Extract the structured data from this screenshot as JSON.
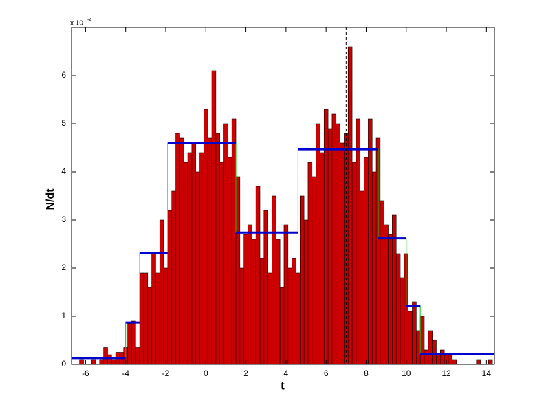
{
  "chart_data": {
    "type": "histogram",
    "xlabel": "t",
    "ylabel": "N/dt",
    "y_multiplier": "x 10",
    "y_multiplier_exponent": "-4",
    "bins": [
      -6.7,
      -6.5,
      -6.3,
      -6.1,
      -5.9,
      -5.7,
      -5.5,
      -5.3,
      -5.1,
      -4.9,
      -4.7,
      -4.5,
      -4.3,
      -4.1,
      -3.9,
      -3.7,
      -3.5,
      -3.3,
      -3.1,
      -2.9,
      -2.7,
      -2.5,
      -2.3,
      -2.1,
      -1.9,
      -1.7,
      -1.5,
      -1.3,
      -1.1,
      -0.9,
      -0.7,
      -0.5,
      -0.3,
      -0.1,
      0.1,
      0.3,
      0.5,
      0.7,
      0.9,
      1.1,
      1.3,
      1.5,
      1.7,
      1.9,
      2.1,
      2.3,
      2.5,
      2.7,
      2.9,
      3.1,
      3.3,
      3.5,
      3.7,
      3.9,
      4.1,
      4.3,
      4.5,
      4.7,
      4.9,
      5.1,
      5.3,
      5.5,
      5.7,
      5.9,
      6.1,
      6.3,
      6.5,
      6.7,
      6.9,
      7.1,
      7.3,
      7.5,
      7.7,
      7.9,
      8.1,
      8.3,
      8.5,
      8.7,
      8.9,
      9.1,
      9.3,
      9.5,
      9.7,
      9.9,
      10.1,
      10.3,
      10.5,
      10.7,
      10.9,
      11.1,
      11.3,
      11.5,
      11.7,
      11.9,
      12.1,
      12.3,
      12.5,
      12.7,
      12.9,
      13.1,
      13.3,
      13.5,
      13.7,
      13.9,
      14.1,
      14.3
    ],
    "counts": [
      0,
      0,
      0.1,
      0,
      0,
      0.1,
      0,
      0.1,
      0.35,
      0.2,
      0.1,
      0.25,
      0.25,
      0.35,
      0.85,
      0.9,
      0.35,
      1.9,
      1.9,
      1.6,
      2.3,
      1.9,
      3.0,
      2.0,
      3.2,
      3.6,
      4.8,
      4.7,
      4.2,
      4.4,
      4.6,
      4.0,
      4.4,
      5.3,
      4.7,
      6.1,
      4.8,
      4.2,
      5.0,
      4.3,
      5.1,
      3.9,
      2.0,
      2.7,
      2.9,
      2.6,
      3.7,
      2.2,
      3.2,
      1.9,
      3.5,
      2.6,
      1.6,
      2.9,
      2.0,
      2.2,
      1.9,
      3.5,
      3.0,
      4.2,
      3.9,
      5.0,
      4.4,
      5.3,
      4.9,
      5.2,
      5.0,
      4.6,
      4.8,
      6.6,
      4.2,
      5.1,
      3.6,
      4.3,
      5.1,
      4.0,
      4.7,
      3.4,
      2.9,
      2.7,
      3.1,
      2.3,
      1.8,
      2.3,
      1.1,
      1.3,
      0.7,
      1.0,
      0.3,
      0.7,
      0.5,
      0.2,
      0.3,
      0.2,
      0.2,
      0.1,
      0,
      0,
      0,
      0,
      0,
      0.1,
      0,
      0,
      0.1
    ],
    "color": "#cc0000",
    "block_edges": [
      -6.7,
      -4.0,
      -3.3,
      -1.9,
      1.5,
      4.6,
      8.6,
      10.0,
      10.7,
      14.4
    ],
    "block_values": [
      0.13,
      0.87,
      2.32,
      4.6,
      2.74,
      4.47,
      2.62,
      1.22,
      0.21
    ],
    "block_color": "#0000cc",
    "step_color": "#00cc00",
    "vline": 7.0,
    "xlim": [
      -6.7,
      14.4
    ],
    "ylim": [
      0,
      7
    ],
    "xticks": [
      -6,
      -4,
      -2,
      0,
      2,
      4,
      6,
      8,
      10,
      12,
      14
    ],
    "yticks": [
      0,
      1,
      2,
      3,
      4,
      5,
      6
    ]
  }
}
